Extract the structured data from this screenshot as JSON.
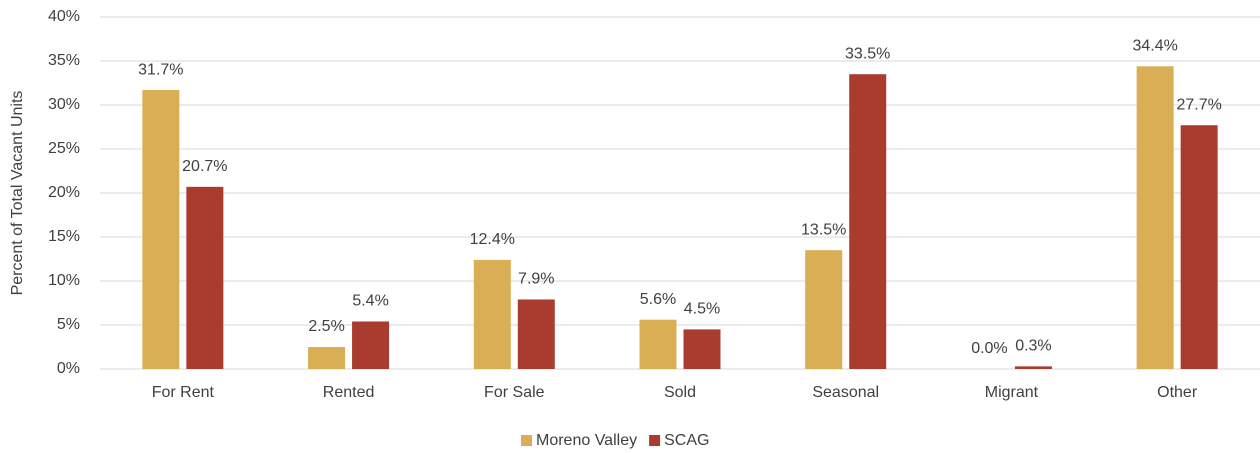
{
  "chart_data": {
    "type": "bar",
    "y_label": "Percent of Total Vacant Units",
    "categories": [
      "For Rent",
      "Rented",
      "For Sale",
      "Sold",
      "Seasonal",
      "Migrant",
      "Other"
    ],
    "series": [
      {
        "name": "Moreno Valley",
        "color": "#D9AE55",
        "values": [
          31.7,
          2.5,
          12.4,
          5.6,
          13.5,
          0.0,
          34.4
        ],
        "value_labels": [
          "31.7%",
          "2.5%",
          "12.4%",
          "5.6%",
          "13.5%",
          "0.0%",
          "34.4%"
        ]
      },
      {
        "name": "SCAG",
        "color": "#A93C2F",
        "values": [
          20.7,
          5.4,
          7.9,
          4.5,
          33.5,
          0.3,
          27.7
        ],
        "value_labels": [
          "20.7%",
          "5.4%",
          "7.9%",
          "4.5%",
          "33.5%",
          "0.3%",
          "27.7%"
        ]
      }
    ],
    "ylim": [
      0,
      40
    ],
    "yticks": [
      {
        "value": 0,
        "label": "0%"
      },
      {
        "value": 5,
        "label": "5%"
      },
      {
        "value": 10,
        "label": "10%"
      },
      {
        "value": 15,
        "label": "15%"
      },
      {
        "value": 20,
        "label": "20%"
      },
      {
        "value": 25,
        "label": "25%"
      },
      {
        "value": 30,
        "label": "30%"
      },
      {
        "value": 35,
        "label": "35%"
      },
      {
        "value": 40,
        "label": "40%"
      }
    ],
    "grid": true,
    "legend": "bottom"
  }
}
